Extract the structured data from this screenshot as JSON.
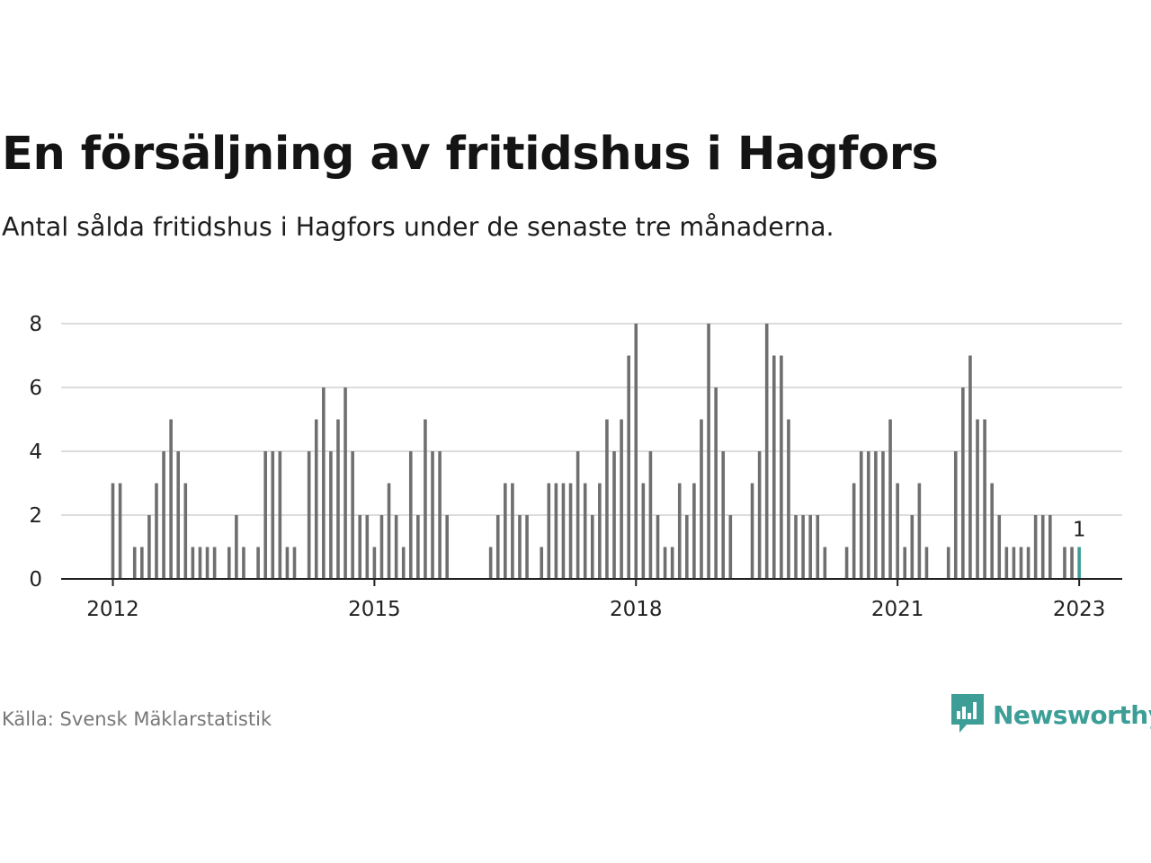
{
  "header": {
    "title": "En försäljning av fritidshus i Hagfors",
    "subtitle": "Antal sålda fritidshus i Hagfors under de senaste tre månaderna."
  },
  "footer": {
    "source": "Källa: Svensk Mäklarstatistik",
    "brand": "Newsworthy"
  },
  "colors": {
    "bar": "#6f6f6f",
    "highlight": "#3d9e97",
    "grid": "#dcdcdc",
    "axis": "#222222"
  },
  "icons": {
    "brand": "newsworthy-logo-icon"
  },
  "chart_data": {
    "type": "bar",
    "start": "2012-01",
    "values": [
      3,
      3,
      0,
      1,
      1,
      2,
      3,
      4,
      5,
      4,
      3,
      1,
      1,
      1,
      1,
      0,
      1,
      2,
      1,
      0,
      1,
      4,
      4,
      4,
      1,
      1,
      0,
      4,
      5,
      6,
      4,
      5,
      6,
      4,
      2,
      2,
      1,
      2,
      3,
      2,
      1,
      4,
      2,
      5,
      4,
      4,
      2,
      0,
      0,
      0,
      0,
      0,
      1,
      2,
      3,
      3,
      2,
      2,
      0,
      1,
      3,
      3,
      3,
      3,
      4,
      3,
      2,
      3,
      5,
      4,
      5,
      7,
      8,
      3,
      4,
      2,
      1,
      1,
      3,
      2,
      3,
      5,
      8,
      6,
      4,
      2,
      0,
      0,
      3,
      4,
      8,
      7,
      7,
      5,
      2,
      2,
      2,
      2,
      1,
      0,
      0,
      1,
      3,
      4,
      4,
      4,
      4,
      5,
      3,
      1,
      2,
      3,
      1,
      0,
      0,
      1,
      4,
      6,
      7,
      5,
      5,
      3,
      2,
      1,
      1,
      1,
      1,
      2,
      2,
      2,
      0,
      1,
      1,
      1
    ],
    "highlight_last": true,
    "last_value_label": "1",
    "y_ticks": [
      "0",
      "2",
      "4",
      "6",
      "8"
    ],
    "ylim": [
      0,
      8
    ],
    "x_ticks": [
      {
        "label": "2012",
        "date": "2012-01"
      },
      {
        "label": "2015",
        "date": "2015-01"
      },
      {
        "label": "2018",
        "date": "2018-01"
      },
      {
        "label": "2021",
        "date": "2021-01"
      },
      {
        "label": "2023",
        "date": "2023-02"
      }
    ],
    "grid": true
  }
}
